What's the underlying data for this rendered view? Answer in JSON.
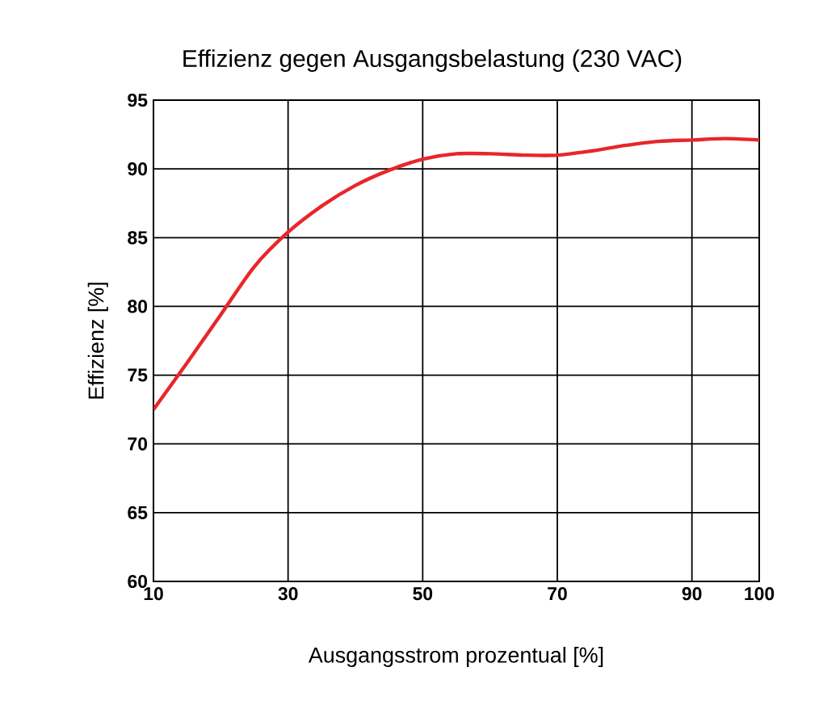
{
  "chart_data": {
    "type": "line",
    "title": "Effizienz gegen Ausgangsbelastung (230 VAC)",
    "xlabel": "Ausgangsstrom prozentual [%]",
    "ylabel": "Effizienz [%]",
    "x": [
      10,
      15,
      20,
      25,
      30,
      35,
      40,
      45,
      50,
      55,
      60,
      65,
      70,
      75,
      80,
      85,
      90,
      95,
      100
    ],
    "series": [
      {
        "color": "#e8262b",
        "values": [
          72.5,
          75.9,
          79.4,
          82.9,
          85.4,
          87.3,
          88.8,
          89.9,
          90.7,
          91.1,
          91.1,
          91.0,
          91.0,
          91.3,
          91.7,
          92.0,
          92.1,
          92.2,
          92.1
        ]
      }
    ],
    "xlim": [
      10,
      100
    ],
    "xticks": [
      10,
      30,
      50,
      70,
      90,
      100
    ],
    "ylim": [
      60,
      95
    ],
    "yticks": [
      60,
      65,
      70,
      75,
      80,
      85,
      90,
      95
    ],
    "grid": true,
    "marker": "none",
    "line_style": "solid"
  }
}
